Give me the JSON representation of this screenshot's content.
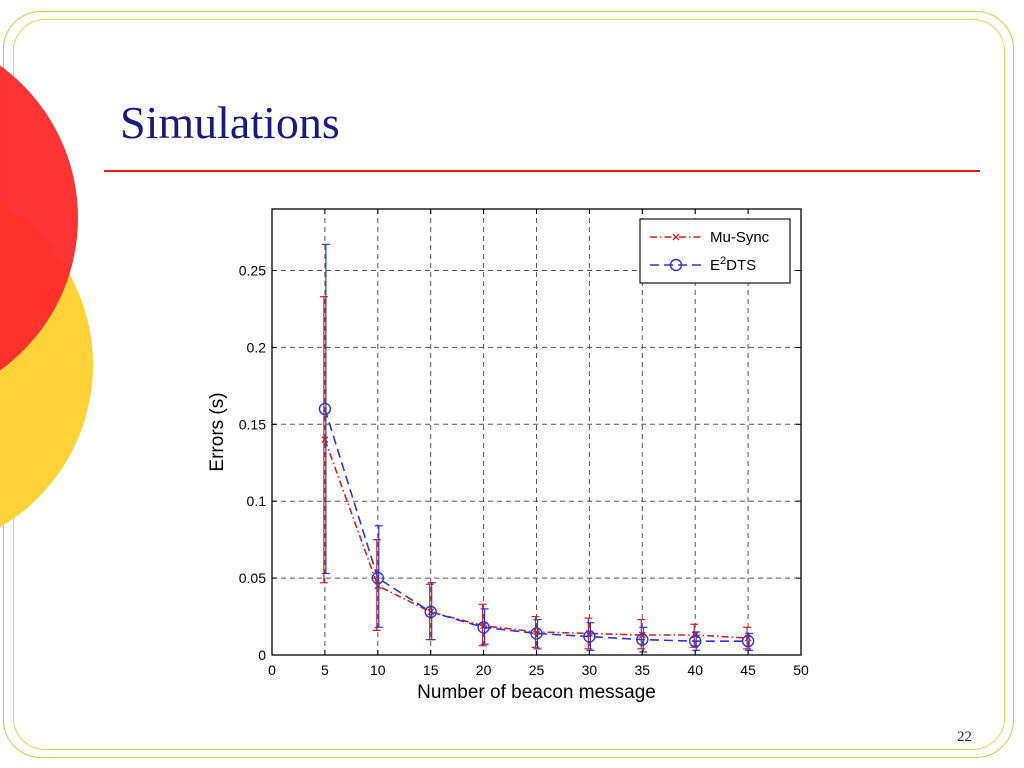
{
  "slide": {
    "title": "Simulations",
    "page_number": "22",
    "accent_colors": {
      "title": "#1a1a7a",
      "rule": "#e02020",
      "circle_red": "#ff2a2a",
      "circle_yellow": "#ffd23a",
      "border": "#d4d46a"
    }
  },
  "chart_data": {
    "type": "line",
    "title": "",
    "xlabel": "Number of beacon message",
    "ylabel": "Errors (s)",
    "xlim": [
      0,
      50
    ],
    "ylim": [
      0,
      0.29
    ],
    "xticks": [
      0,
      5,
      10,
      15,
      20,
      25,
      30,
      35,
      40,
      45,
      50
    ],
    "yticks": [
      0,
      0.05,
      0.1,
      0.15,
      0.2,
      0.25
    ],
    "ytick_labels": [
      "0",
      "0.05",
      "0.1",
      "0.15",
      "0.2",
      "0.25"
    ],
    "grid": true,
    "legend_position": "top-right",
    "x": [
      5,
      10,
      15,
      20,
      25,
      30,
      35,
      40,
      45
    ],
    "series": [
      {
        "name": "Mu-Sync",
        "marker": "x",
        "line_style": "dash-dot",
        "color": "#cc2222",
        "values": [
          0.14,
          0.045,
          0.028,
          0.019,
          0.015,
          0.014,
          0.013,
          0.013,
          0.011
        ],
        "err_low": [
          0.047,
          0.016,
          0.01,
          0.006,
          0.005,
          0.004,
          0.004,
          0.005,
          0.004
        ],
        "err_high": [
          0.233,
          0.075,
          0.046,
          0.033,
          0.025,
          0.024,
          0.023,
          0.02,
          0.018
        ]
      },
      {
        "name": "E",
        "name_sup": "2",
        "name_suffix": "DTS",
        "marker": "o",
        "line_style": "dashed",
        "color": "#3333cc",
        "values": [
          0.16,
          0.05,
          0.028,
          0.018,
          0.014,
          0.012,
          0.01,
          0.009,
          0.009
        ],
        "err_low": [
          0.053,
          0.018,
          0.01,
          0.007,
          0.004,
          0.003,
          0.002,
          0.003,
          0.003
        ],
        "err_high": [
          0.267,
          0.084,
          0.047,
          0.03,
          0.023,
          0.021,
          0.018,
          0.015,
          0.014
        ]
      }
    ]
  }
}
